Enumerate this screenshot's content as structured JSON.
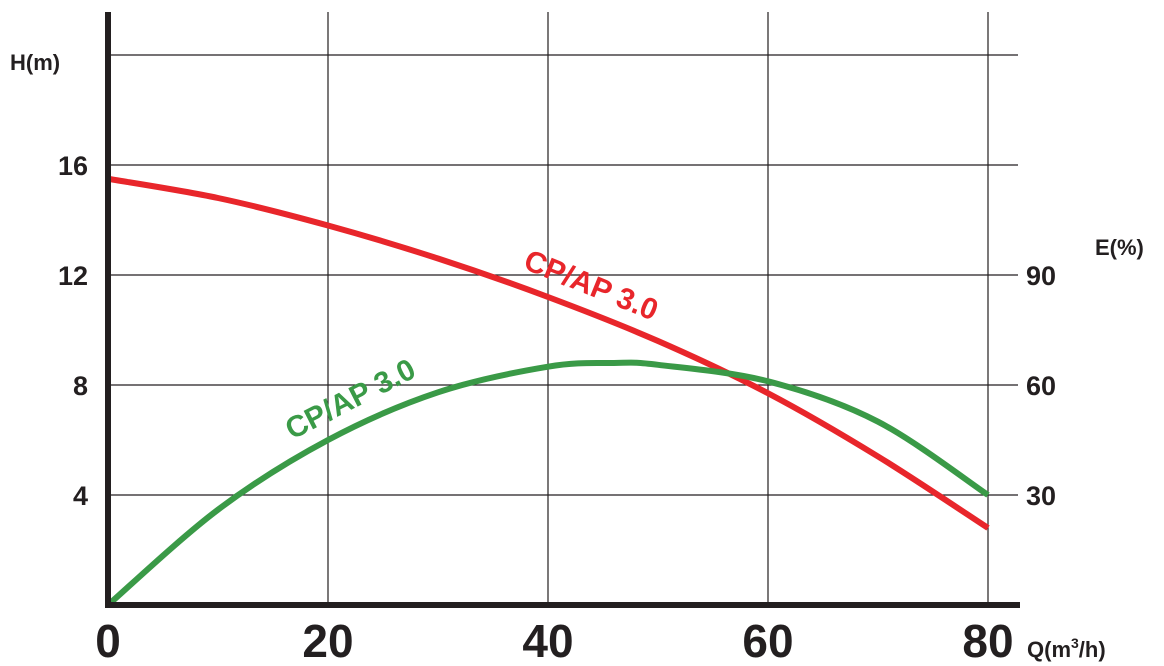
{
  "chart_data": {
    "type": "line",
    "xlabel": "Q(m",
    "xlabel_sup": "3",
    "xlabel_tail": "/h)",
    "ylabel_left": "H(m)",
    "ylabel_right": "E(%)",
    "xlim": [
      0,
      80
    ],
    "ylim_left": [
      0,
      20
    ],
    "ylim_right": [
      0,
      150
    ],
    "x_ticks": [
      "0",
      "20",
      "40",
      "60",
      "80"
    ],
    "y_left_ticks": [
      "4",
      "8",
      "12",
      "16"
    ],
    "y_right_ticks": [
      "30",
      "60",
      "90"
    ],
    "grid": true,
    "series": [
      {
        "name": "CP/AP 3.0",
        "axis": "left",
        "color": "#e8262b",
        "x": [
          0,
          10,
          20,
          30,
          40,
          50,
          60,
          70,
          80
        ],
        "y": [
          15.5,
          14.8,
          13.8,
          12.6,
          11.2,
          9.6,
          7.7,
          5.4,
          2.8
        ]
      },
      {
        "name": "CP/AP 3.0",
        "axis": "right",
        "color": "#3a9a47",
        "x": [
          0,
          10,
          20,
          30,
          40,
          46,
          50,
          60,
          70,
          80
        ],
        "y": [
          0,
          26,
          45,
          58,
          65,
          66,
          65.5,
          61,
          50,
          30
        ]
      }
    ]
  }
}
